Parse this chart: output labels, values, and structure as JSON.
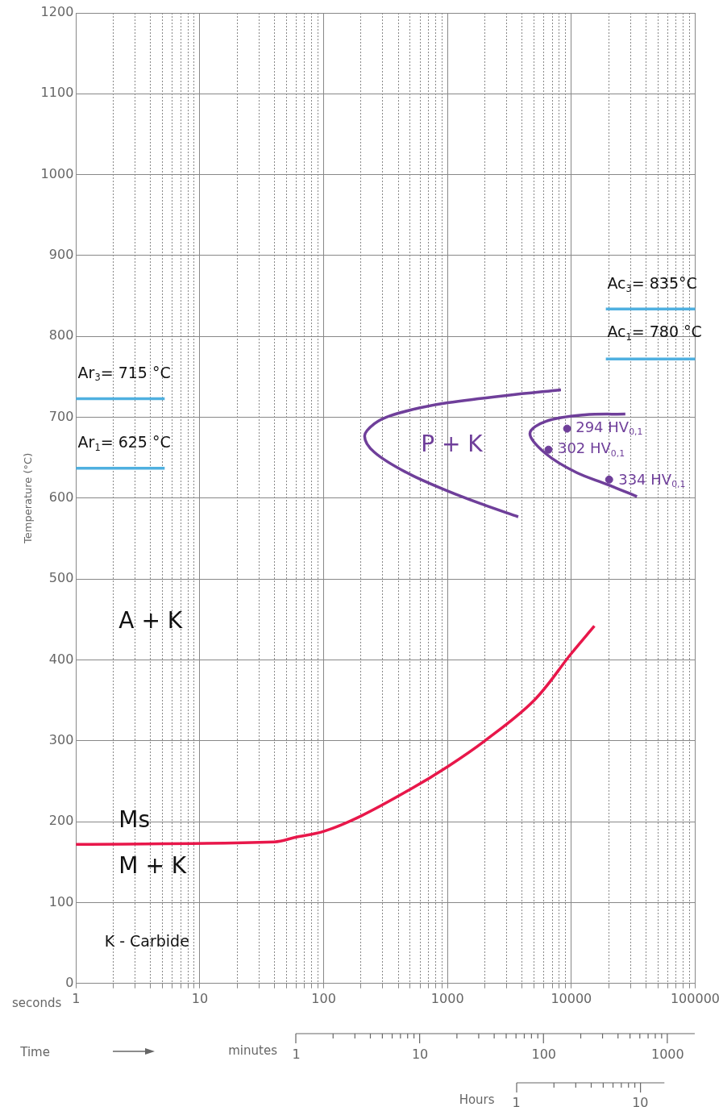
{
  "chart_data": {
    "type": "line",
    "xlabel": "seconds",
    "ylabel": "Temperature (°C)",
    "log": "x",
    "grid": true,
    "legend": false,
    "line_style": "solid",
    "marker": "none",
    "xlim": [
      1,
      100000
    ],
    "ylim": [
      0,
      1200
    ],
    "xticks": [
      1,
      {
        "value": 2,
        "label": null
      },
      {
        "value": 3,
        "label": null
      },
      {
        "value": 4,
        "label": null
      },
      {
        "value": 5,
        "label": null
      },
      {
        "value": 6,
        "label": null
      },
      {
        "value": 7,
        "label": null
      },
      {
        "value": 8,
        "label": null
      },
      {
        "value": 9,
        "label": null
      },
      10,
      {
        "value": 20,
        "label": null
      },
      {
        "value": 30,
        "label": null
      },
      {
        "value": 40,
        "label": null
      },
      {
        "value": 50,
        "label": null
      },
      {
        "value": 60,
        "label": null
      },
      {
        "value": 70,
        "label": null
      },
      {
        "value": 80,
        "label": null
      },
      {
        "value": 90,
        "label": null
      },
      100,
      {
        "value": 200,
        "label": null
      },
      {
        "value": 300,
        "label": null
      },
      {
        "value": 400,
        "label": null
      },
      {
        "value": 500,
        "label": null
      },
      {
        "value": 600,
        "label": null
      },
      {
        "value": 700,
        "label": null
      },
      {
        "value": 800,
        "label": null
      },
      {
        "value": 900,
        "label": null
      },
      1000,
      {
        "value": 2000,
        "label": null
      },
      {
        "value": 3000,
        "label": null
      },
      {
        "value": 4000,
        "label": null
      },
      {
        "value": 5000,
        "label": null
      },
      {
        "value": 6000,
        "label": null
      },
      {
        "value": 7000,
        "label": null
      },
      {
        "value": 8000,
        "label": null
      },
      {
        "value": 9000,
        "label": null
      },
      10000,
      {
        "value": 20000,
        "label": null
      },
      {
        "value": 30000,
        "label": null
      },
      {
        "value": 40000,
        "label": null
      },
      {
        "value": 50000,
        "label": null
      },
      {
        "value": 60000,
        "label": null
      },
      {
        "value": 70000,
        "label": null
      },
      {
        "value": 80000,
        "label": null
      },
      {
        "value": 90000,
        "label": null
      },
      100000
    ],
    "yticks": [
      0,
      100,
      200,
      300,
      400,
      500,
      600,
      700,
      800,
      900,
      1000,
      1100,
      1200
    ],
    "series": [
      {
        "color": "#e8174a",
        "x": [
          1,
          40,
          60,
          100,
          200,
          500,
          1000,
          2000,
          5000,
          10000,
          15350
        ],
        "values": [
          172,
          175,
          181,
          188,
          207,
          240,
          268,
          300,
          350,
          408,
          442
        ]
      },
      {
        "color": "#6f3f9a",
        "x": [
          8240,
          3000,
          1000,
          612,
          345,
          256,
          214,
          256,
          463,
          1000,
          1950,
          3725
        ],
        "values": [
          734,
          727,
          718,
          712,
          702,
          692,
          677,
          657,
          632,
          609,
          592,
          577
        ]
      },
      {
        "color": "#6f3f9a",
        "x": [
          27300,
          12800,
          6230,
          4630,
          6230,
          10900,
          19500,
          33900
        ],
        "values": [
          704,
          703,
          695,
          680,
          655,
          632,
          617,
          602
        ]
      },
      {
        "type": "scatter",
        "marker": "circle",
        "color": "#6f3f9a",
        "x": [
          9250,
          6540,
          20200
        ],
        "values": [
          686,
          660,
          623
        ]
      },
      {
        "color": "#4fb0e0",
        "x": [
          1,
          5.2
        ],
        "values": [
          723,
          723
        ]
      },
      {
        "color": "#4fb0e0",
        "x": [
          1,
          5.2
        ],
        "values": [
          637,
          637
        ]
      },
      {
        "color": "#4fb0e0",
        "x": [
          19000,
          100000
        ],
        "values": [
          834,
          834
        ]
      },
      {
        "color": "#4fb0e0",
        "x": [
          19000,
          100000
        ],
        "values": [
          772,
          772
        ]
      }
    ],
    "annotations": [
      "Ar$_{3}$= 715 °C",
      "Ar$_{1}$= 625 °C",
      "Ac$_{3}$= 835°C",
      "Ac$_{1}$= 780 °C",
      "294 HV$_{0,1}$",
      "302 HV$_{0,1}$",
      "334 HV$_{0,1}$",
      "P + K",
      "A + K",
      "Ms",
      "M + K",
      "K - Carbide",
      "Time",
      "minutes",
      "1",
      "10",
      "100",
      "1000",
      "Hours",
      "1",
      "10"
    ]
  }
}
